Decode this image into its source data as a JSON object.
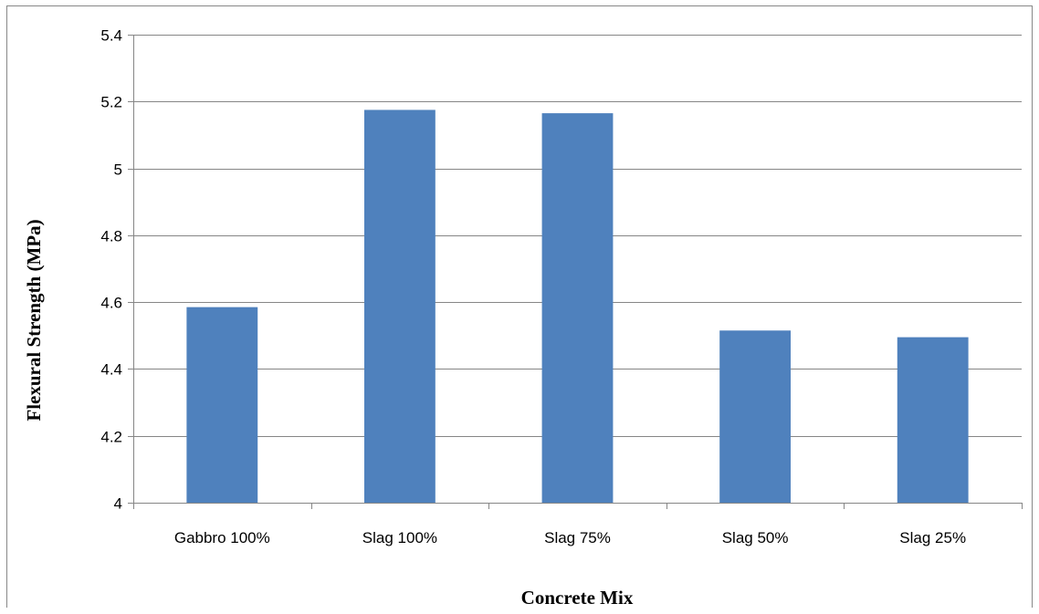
{
  "chart_data": {
    "type": "bar",
    "title": "",
    "xlabel": "Concrete Mix",
    "ylabel": "Flexural Strength (MPa)",
    "categories": [
      "Gabbro 100%",
      "Slag 100%",
      "Slag 75%",
      "Slag 50%",
      "Slag 25%"
    ],
    "values": [
      4.585,
      5.175,
      5.165,
      4.515,
      4.495
    ],
    "ylim": [
      4,
      5.4
    ],
    "yticks": [
      "4",
      "4.2",
      "4.4",
      "4.6",
      "4.8",
      "5",
      "5.2",
      "5.4"
    ],
    "grid": true,
    "legend": "none",
    "bar_color": "#4F81BD",
    "grid_color": "#868686"
  }
}
